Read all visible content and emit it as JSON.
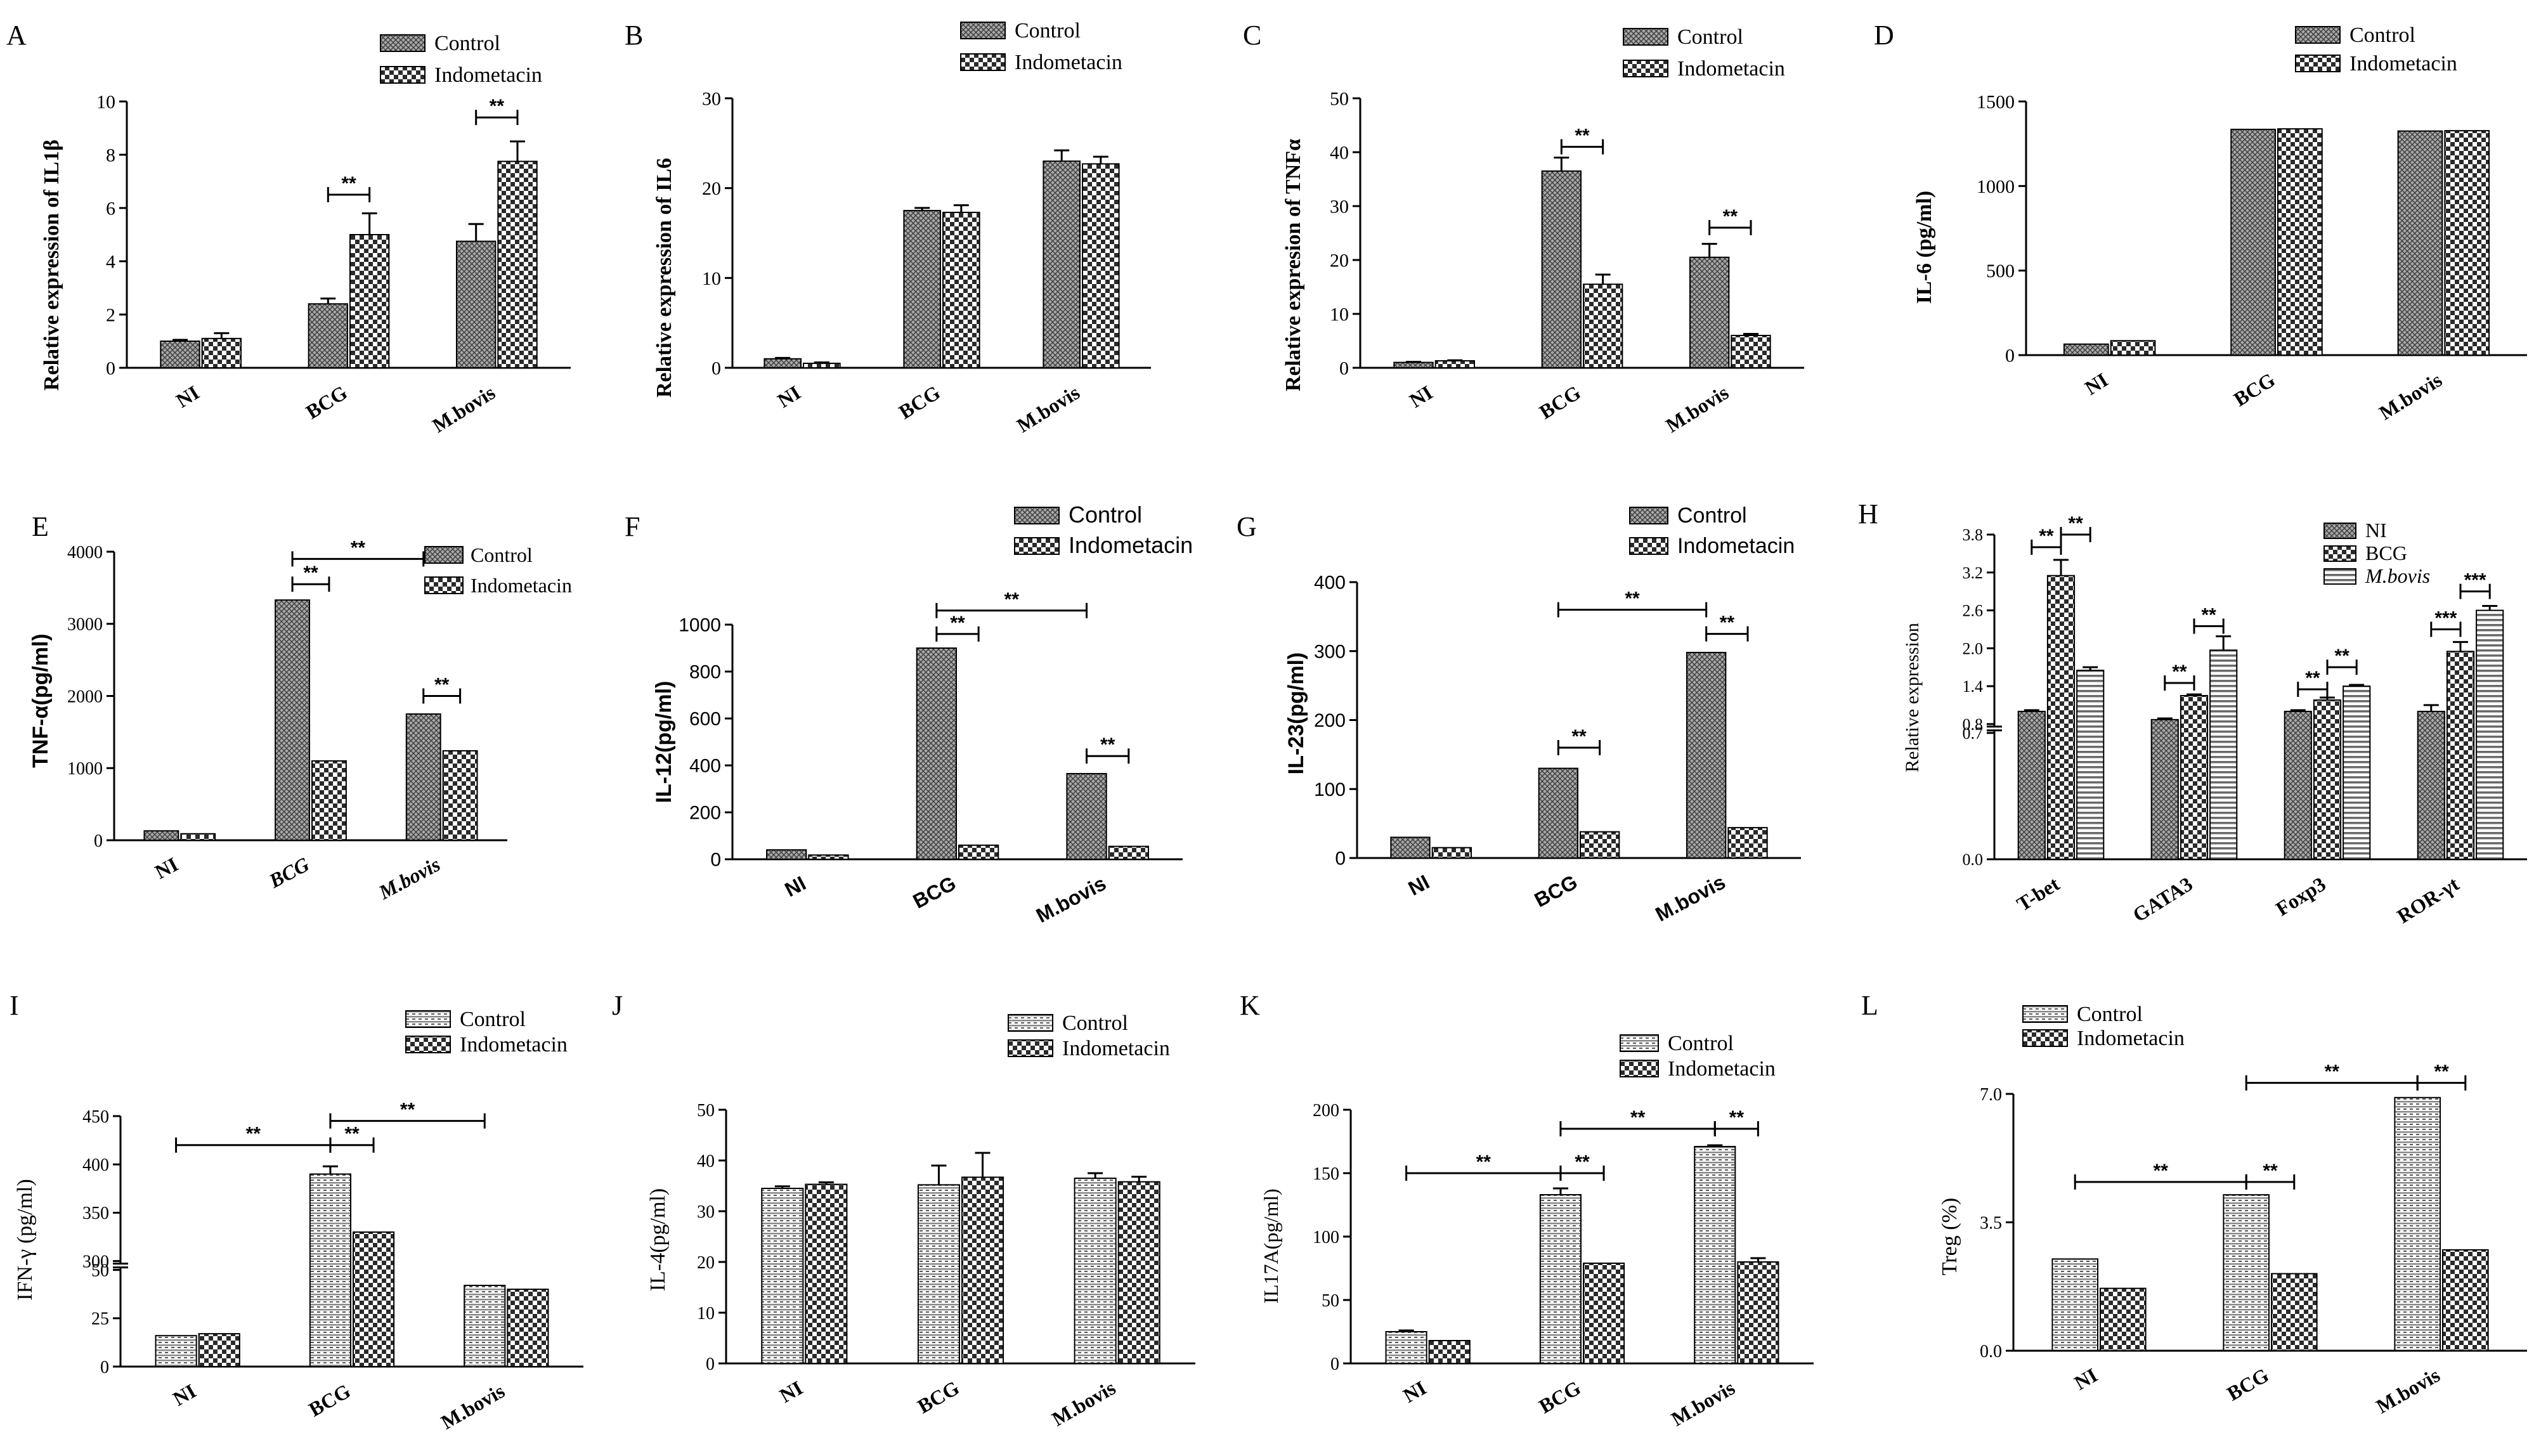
{
  "figure": {
    "type": "multi-panel bar chart figure"
  },
  "chart_data": [
    {
      "panel": "A",
      "type": "bar",
      "title": "",
      "xlabel": "",
      "ylabel": "Relative expression of IL1β",
      "categories": [
        "NI",
        "BCG",
        "M.bovis"
      ],
      "series": [
        {
          "name": "Control",
          "values": [
            1.0,
            2.4,
            4.75
          ],
          "errors": [
            0.05,
            0.2,
            0.65
          ]
        },
        {
          "name": "Indometacin",
          "values": [
            1.1,
            5.0,
            7.75
          ],
          "errors": [
            0.2,
            0.8,
            0.75
          ]
        }
      ],
      "ylim": [
        0,
        10
      ],
      "yticks": [
        "0",
        "2",
        "4",
        "6",
        "8",
        "10"
      ],
      "significance": [
        {
          "label": "**",
          "from": [
            1,
            0
          ],
          "to": [
            1,
            1
          ],
          "level": 6.5
        },
        {
          "label": "**",
          "from": [
            2,
            0
          ],
          "to": [
            2,
            1
          ],
          "level": 9.4
        }
      ],
      "legend": "top-right"
    },
    {
      "panel": "B",
      "type": "bar",
      "title": "",
      "xlabel": "",
      "ylabel": "Relative expression of IL6",
      "categories": [
        "NI",
        "BCG",
        "M.bovis"
      ],
      "series": [
        {
          "name": "Control",
          "values": [
            1.0,
            17.5,
            23.0
          ],
          "errors": [
            0.1,
            0.3,
            1.2
          ]
        },
        {
          "name": "Indometacin",
          "values": [
            0.5,
            17.3,
            22.7
          ],
          "errors": [
            0.1,
            0.8,
            0.8
          ]
        }
      ],
      "ylim": [
        0,
        30
      ],
      "yticks": [
        "0",
        "10",
        "20",
        "30"
      ],
      "significance": [],
      "legend": "top-right"
    },
    {
      "panel": "C",
      "type": "bar",
      "title": "",
      "xlabel": "",
      "ylabel": "Relative expresion of TNFα",
      "categories": [
        "NI",
        "BCG",
        "M.bovis"
      ],
      "series": [
        {
          "name": "Control",
          "values": [
            1.0,
            36.5,
            20.5
          ],
          "errors": [
            0.1,
            2.5,
            2.5
          ]
        },
        {
          "name": "Indometacin",
          "values": [
            1.3,
            15.5,
            6.0
          ],
          "errors": [
            0.1,
            1.8,
            0.3
          ]
        }
      ],
      "ylim": [
        0,
        50
      ],
      "yticks": [
        "0",
        "10",
        "20",
        "30",
        "40",
        "50"
      ],
      "significance": [
        {
          "label": "**",
          "from": [
            1,
            0
          ],
          "to": [
            1,
            1
          ],
          "level": 41
        },
        {
          "label": "**",
          "from": [
            2,
            0
          ],
          "to": [
            2,
            1
          ],
          "level": 26
        }
      ],
      "legend": "top-right"
    },
    {
      "panel": "D",
      "type": "bar",
      "title": "",
      "xlabel": "",
      "ylabel": "IL-6 (pg/ml)",
      "categories": [
        "NI",
        "BCG",
        "M.bovis"
      ],
      "series": [
        {
          "name": "Control",
          "values": [
            65,
            1335,
            1325
          ],
          "errors": [
            0,
            0,
            0
          ]
        },
        {
          "name": "Indometacin",
          "values": [
            85,
            1338,
            1327
          ],
          "errors": [
            0,
            0,
            0
          ]
        }
      ],
      "ylim": [
        0,
        1500
      ],
      "yticks": [
        "0",
        "500",
        "1000",
        "1500"
      ],
      "significance": [],
      "legend": "top-right"
    },
    {
      "panel": "E",
      "type": "bar",
      "title": "",
      "xlabel": "",
      "ylabel": "TNF-α(pg/ml)",
      "categories": [
        "NI",
        "BCG",
        "M.bovis"
      ],
      "series": [
        {
          "name": "Control",
          "values": [
            130,
            3330,
            1750
          ],
          "errors": [
            0,
            0,
            0
          ]
        },
        {
          "name": "Indometacin",
          "values": [
            90,
            1100,
            1240
          ],
          "errors": [
            0,
            0,
            0
          ]
        }
      ],
      "ylim": [
        0,
        4000
      ],
      "yticks": [
        "0",
        "1000",
        "2000",
        "3000",
        "4000"
      ],
      "significance": [
        {
          "label": "**",
          "from": [
            1,
            0
          ],
          "to": [
            1,
            1
          ],
          "level": 3550
        },
        {
          "label": "**",
          "from": [
            1,
            0
          ],
          "to": [
            2,
            0
          ],
          "level": 3900
        },
        {
          "label": "**",
          "from": [
            2,
            0
          ],
          "to": [
            2,
            1
          ],
          "level": 2000
        }
      ],
      "legend": "top-right"
    },
    {
      "panel": "F",
      "type": "bar",
      "title": "",
      "xlabel": "",
      "ylabel": "IL-12(pg/ml)",
      "categories": [
        "NI",
        "BCG",
        "M.bovis"
      ],
      "series": [
        {
          "name": "Control",
          "values": [
            40,
            900,
            365
          ],
          "errors": [
            0,
            0,
            0
          ]
        },
        {
          "name": "Indometacin",
          "values": [
            18,
            60,
            55
          ],
          "errors": [
            0,
            0,
            0
          ]
        }
      ],
      "ylim": [
        0,
        1000
      ],
      "yticks": [
        "0",
        "200",
        "400",
        "600",
        "800",
        "1000"
      ],
      "significance": [
        {
          "label": "**",
          "from": [
            1,
            0
          ],
          "to": [
            1,
            1
          ],
          "level": 960
        },
        {
          "label": "**",
          "from": [
            1,
            0
          ],
          "to": [
            2,
            0
          ],
          "level": 1090
        },
        {
          "label": "**",
          "from": [
            2,
            0
          ],
          "to": [
            2,
            1
          ],
          "level": 440
        }
      ],
      "legend": "top-right"
    },
    {
      "panel": "G",
      "type": "bar",
      "title": "",
      "xlabel": "",
      "ylabel": "IL-23(pg/ml)",
      "categories": [
        "NI",
        "BCG",
        "M.bovis"
      ],
      "series": [
        {
          "name": "Control",
          "values": [
            30,
            130,
            298
          ],
          "errors": [
            0,
            0,
            0
          ]
        },
        {
          "name": "Indometacin",
          "values": [
            15,
            38,
            44
          ],
          "errors": [
            0,
            0,
            0
          ]
        }
      ],
      "ylim": [
        0,
        400
      ],
      "yticks": [
        "0",
        "100",
        "200",
        "300",
        "400"
      ],
      "significance": [
        {
          "label": "**",
          "from": [
            1,
            0
          ],
          "to": [
            1,
            1
          ],
          "level": 160
        },
        {
          "label": "**",
          "from": [
            1,
            0
          ],
          "to": [
            2,
            0
          ],
          "level": 360
        },
        {
          "label": "**",
          "from": [
            2,
            0
          ],
          "to": [
            2,
            1
          ],
          "level": 325
        }
      ],
      "legend": "top-right"
    },
    {
      "panel": "H",
      "type": "bar",
      "title": "",
      "xlabel": "",
      "ylabel": "Relative expression",
      "categories": [
        "T-bet",
        "GATA3",
        "Foxp3",
        "ROR-γt"
      ],
      "series": [
        {
          "name": "NI",
          "values": [
            1.0,
            0.87,
            1.0,
            1.0
          ],
          "errors": [
            0.02,
            0.02,
            0.02,
            0.1
          ]
        },
        {
          "name": "BCG",
          "values": [
            3.15,
            1.25,
            1.18,
            1.95
          ],
          "errors": [
            0.25,
            0.02,
            0.04,
            0.15
          ]
        },
        {
          "name": "M.bovis",
          "values": [
            1.65,
            1.97,
            1.4,
            2.6
          ],
          "errors": [
            0.05,
            0.22,
            0.02,
            0.07
          ]
        }
      ],
      "ylim": [
        0,
        3.8
      ],
      "yticks": [
        "0.0",
        "0.7",
        "0.8",
        "1.4",
        "2.0",
        "2.6",
        "3.2",
        "3.8"
      ],
      "axis_break": [
        0.7,
        0.8
      ],
      "significance": [
        {
          "label": "**",
          "from": [
            0,
            0
          ],
          "to": [
            0,
            1
          ],
          "level": 3.6
        },
        {
          "label": "**",
          "from": [
            0,
            1
          ],
          "to": [
            0,
            2
          ],
          "level": 3.8
        },
        {
          "label": "**",
          "from": [
            1,
            0
          ],
          "to": [
            1,
            1
          ],
          "level": 1.45
        },
        {
          "label": "**",
          "from": [
            1,
            1
          ],
          "to": [
            1,
            2
          ],
          "level": 2.35
        },
        {
          "label": "**",
          "from": [
            2,
            0
          ],
          "to": [
            2,
            1
          ],
          "level": 1.35
        },
        {
          "label": "**",
          "from": [
            2,
            1
          ],
          "to": [
            2,
            2
          ],
          "level": 1.7
        },
        {
          "label": "***",
          "from": [
            3,
            0
          ],
          "to": [
            3,
            1
          ],
          "level": 2.3
        },
        {
          "label": "***",
          "from": [
            3,
            1
          ],
          "to": [
            3,
            2
          ],
          "level": 2.9
        }
      ],
      "legend": "top-right"
    },
    {
      "panel": "I",
      "type": "bar",
      "title": "",
      "xlabel": "",
      "ylabel": "IFN-γ (pg/ml)",
      "categories": [
        "NI",
        "BCG",
        "M.bovis"
      ],
      "series": [
        {
          "name": "Control",
          "values": [
            16,
            390,
            42
          ],
          "errors": [
            0,
            8,
            0
          ]
        },
        {
          "name": "Indometacin",
          "values": [
            17,
            330,
            40
          ],
          "errors": [
            0,
            0,
            0
          ]
        }
      ],
      "ylim": [
        0,
        450
      ],
      "yticks": [
        "0",
        "25",
        "50",
        "300",
        "350",
        "400",
        "450"
      ],
      "axis_break": [
        50,
        300
      ],
      "significance": [
        {
          "label": "**",
          "from": [
            0,
            0
          ],
          "to": [
            1,
            0
          ],
          "level": 420
        },
        {
          "label": "**",
          "from": [
            1,
            0
          ],
          "to": [
            1,
            1
          ],
          "level": 420
        },
        {
          "label": "**",
          "from": [
            1,
            0
          ],
          "to": [
            2,
            0
          ],
          "level": 445
        }
      ],
      "legend": "top-right"
    },
    {
      "panel": "J",
      "type": "bar",
      "title": "",
      "xlabel": "",
      "ylabel": "IL-4(pg/ml)",
      "categories": [
        "NI",
        "BCG",
        "M.bovis"
      ],
      "series": [
        {
          "name": "Control",
          "values": [
            34.5,
            35.2,
            36.5
          ],
          "errors": [
            0.4,
            3.8,
            1.0
          ]
        },
        {
          "name": "Indometacin",
          "values": [
            35.3,
            36.7,
            35.8
          ],
          "errors": [
            0.4,
            4.8,
            1.0
          ]
        }
      ],
      "ylim": [
        0,
        50
      ],
      "yticks": [
        "0",
        "10",
        "20",
        "30",
        "40",
        "50"
      ],
      "significance": [],
      "legend": "top-right"
    },
    {
      "panel": "K",
      "type": "bar",
      "title": "",
      "xlabel": "",
      "ylabel": "IL17A(pg/ml)",
      "categories": [
        "NI",
        "BCG",
        "M.bovis"
      ],
      "series": [
        {
          "name": "Control",
          "values": [
            25,
            133,
            171
          ],
          "errors": [
            1,
            5,
            1
          ]
        },
        {
          "name": "Indometacin",
          "values": [
            18,
            79,
            80
          ],
          "errors": [
            0,
            0,
            3
          ]
        }
      ],
      "ylim": [
        0,
        200
      ],
      "yticks": [
        "0",
        "50",
        "100",
        "150",
        "200"
      ],
      "significance": [
        {
          "label": "**",
          "from": [
            0,
            0
          ],
          "to": [
            1,
            0
          ],
          "level": 150
        },
        {
          "label": "**",
          "from": [
            1,
            0
          ],
          "to": [
            1,
            1
          ],
          "level": 150
        },
        {
          "label": "**",
          "from": [
            1,
            0
          ],
          "to": [
            2,
            0
          ],
          "level": 185
        },
        {
          "label": "**",
          "from": [
            2,
            0
          ],
          "to": [
            2,
            1
          ],
          "level": 185
        }
      ],
      "legend": "top-right"
    },
    {
      "panel": "L",
      "type": "bar",
      "title": "",
      "xlabel": "",
      "ylabel": "Treg (%)",
      "categories": [
        "NI",
        "BCG",
        "M.bovis"
      ],
      "series": [
        {
          "name": "Control",
          "values": [
            2.5,
            4.25,
            6.9
          ],
          "errors": [
            0,
            0,
            0
          ]
        },
        {
          "name": "Indometacin",
          "values": [
            1.7,
            2.1,
            2.75
          ],
          "errors": [
            0,
            0,
            0
          ]
        }
      ],
      "ylim": [
        0,
        7.0
      ],
      "yticks": [
        "0.0",
        "3.5",
        "7.0"
      ],
      "significance": [
        {
          "label": "**",
          "from": [
            0,
            0
          ],
          "to": [
            1,
            0
          ],
          "level": 4.6
        },
        {
          "label": "**",
          "from": [
            1,
            0
          ],
          "to": [
            1,
            1
          ],
          "level": 4.6
        },
        {
          "label": "**",
          "from": [
            1,
            0
          ],
          "to": [
            2,
            0
          ],
          "level": 7.3
        },
        {
          "label": "**",
          "from": [
            2,
            0
          ],
          "to": [
            2,
            1
          ],
          "level": 7.3
        }
      ],
      "legend": "top-left"
    }
  ]
}
